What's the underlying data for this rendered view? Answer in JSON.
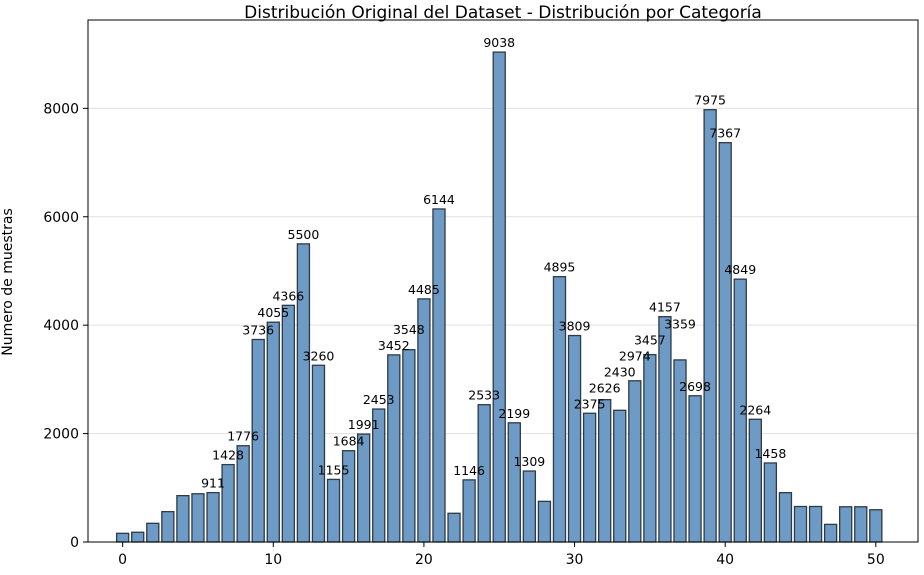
{
  "chart_data": {
    "type": "bar",
    "title": "Distribución Original del Dataset - Distribución por Categoría",
    "xlabel": "",
    "ylabel": "Numero de muestras",
    "x": [
      0,
      1,
      2,
      3,
      4,
      5,
      6,
      7,
      8,
      9,
      10,
      11,
      12,
      13,
      14,
      15,
      16,
      17,
      18,
      19,
      20,
      21,
      22,
      23,
      24,
      25,
      26,
      27,
      28,
      29,
      30,
      31,
      32,
      33,
      34,
      35,
      36,
      37,
      38,
      39,
      40,
      41,
      42,
      43,
      44,
      45,
      46,
      47,
      48,
      49,
      50
    ],
    "values": [
      160,
      180,
      345,
      560,
      855,
      890,
      911,
      1428,
      1776,
      3736,
      4055,
      4366,
      5500,
      3260,
      1155,
      1684,
      1991,
      2453,
      3452,
      3548,
      4485,
      6144,
      530,
      1146,
      2533,
      9038,
      2199,
      1309,
      750,
      4895,
      3809,
      2375,
      2626,
      2430,
      2974,
      3457,
      4157,
      3359,
      2698,
      7975,
      7367,
      4849,
      2264,
      1458,
      910,
      655,
      655,
      325,
      650,
      650,
      595
    ],
    "labeled_indices": [
      6,
      7,
      8,
      9,
      10,
      11,
      12,
      13,
      14,
      15,
      16,
      17,
      18,
      19,
      20,
      21,
      23,
      24,
      25,
      26,
      27,
      29,
      30,
      31,
      32,
      33,
      34,
      35,
      36,
      37,
      38,
      39,
      40,
      41,
      42,
      43
    ],
    "xticks": [
      0,
      10,
      20,
      30,
      40,
      50
    ],
    "yticks": [
      0,
      2000,
      4000,
      6000,
      8000
    ],
    "xlim": [
      -2.3,
      52.8
    ],
    "ylim": [
      0,
      9630
    ],
    "grid": "horizontal",
    "colors": {
      "bar": "#6e9bc5",
      "bar_edge": "#2f3a45",
      "grid": "#e0e0e0"
    }
  }
}
